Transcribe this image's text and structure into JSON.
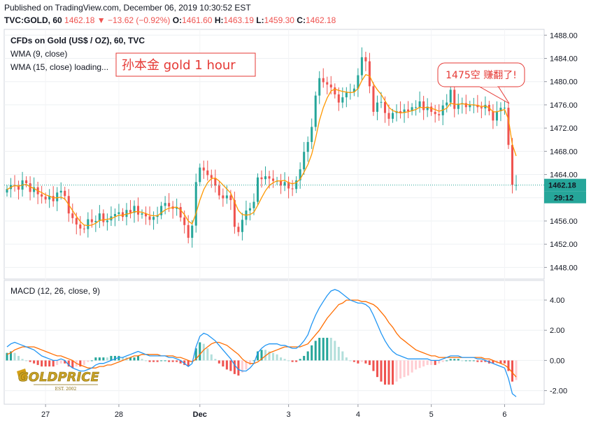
{
  "header": {
    "published": "Published on TradingView.com, December 06, 2019 10:30:52 EST",
    "symbol": "TVC:GOLD, 60",
    "last": "1462.18",
    "arrow": "▼",
    "change": "−13.62 (−0.92%)",
    "o_label": "O:",
    "o_val": "1461.60",
    "h_label": "H:",
    "h_val": "1463.19",
    "l_label": "L:",
    "l_val": "1459.30",
    "c_label": "C:",
    "c_val": "1462.18"
  },
  "legend": {
    "title": "CFDs on Gold (US$ / OZ), 60, TVC",
    "wma9": "WMA (9, close)",
    "wma15": "WMA (15, close) loading...",
    "macd": "MACD (12, 26, close, 9)"
  },
  "annotations": {
    "box_text": "孙本金   gold 1 hour",
    "callout_text": "1475空 赚翻了!",
    "logo_text": "GOLDPRICE",
    "logo_sub": "EST. 2002"
  },
  "price_axis": {
    "labels": [
      "1488.00",
      "1484.00",
      "1480.00",
      "1476.00",
      "1472.00",
      "1468.00",
      "1464.00",
      "1460.00",
      "1456.00",
      "1452.00",
      "1448.00"
    ],
    "current_price": "1462.18",
    "countdown": "29:12"
  },
  "macd_axis": {
    "labels": [
      "4.00",
      "2.00",
      "0.00",
      "-2.00"
    ]
  },
  "time_axis": {
    "labels": [
      "27",
      "28",
      "Dec",
      "3",
      "4",
      "5",
      "6"
    ]
  },
  "colors": {
    "up": "#26a69a",
    "down": "#ef5350",
    "wma": "#ff9800",
    "macd_line": "#2196f3",
    "signal_line": "#ff6d00",
    "hist_up_strong": "#26a69a",
    "hist_up_weak": "#b2dfdb",
    "hist_down_strong": "#ef5350",
    "hist_down_weak": "#ffcdd2",
    "price_tag": "#26a69a",
    "annotation": "#e53935"
  },
  "chart_data": {
    "type": "candlestick",
    "title": "CFDs on Gold (US$ / OZ), 60, TVC",
    "ylim": [
      1446,
      1489
    ],
    "x_labels": [
      "27",
      "28",
      "Dec",
      "3",
      "4",
      "5",
      "6"
    ],
    "closes": [
      1461.5,
      1462.2,
      1462.0,
      1461.4,
      1463.0,
      1462.5,
      1461.0,
      1461.8,
      1460.6,
      1460.2,
      1459.7,
      1460.3,
      1459.4,
      1460.9,
      1461.2,
      1460.3,
      1457.3,
      1456.5,
      1455.4,
      1454.7,
      1454.6,
      1456.3,
      1455.8,
      1456.0,
      1457.3,
      1455.8,
      1456.1,
      1456.8,
      1457.2,
      1457.5,
      1456.7,
      1457.9,
      1457.4,
      1458.6,
      1457.1,
      1457.3,
      1456.8,
      1456.2,
      1456.7,
      1457.0,
      1458.6,
      1459.1,
      1458.5,
      1458.1,
      1458.4,
      1456.6,
      1455.3,
      1453.1,
      1455.2,
      1462.7,
      1465.2,
      1464.7,
      1463.9,
      1463.4,
      1462.1,
      1460.4,
      1459.9,
      1460.4,
      1459.6,
      1455.0,
      1454.1,
      1456.2,
      1457.8,
      1458.2,
      1459.3,
      1463.5,
      1463.2,
      1463.7,
      1463.3,
      1462.9,
      1462.9,
      1462.1,
      1462.7,
      1461.6,
      1461.5,
      1463.0,
      1464.9,
      1467.9,
      1469.6,
      1472.2,
      1477.6,
      1480.6,
      1479.9,
      1479.5,
      1479.0,
      1477.8,
      1476.4,
      1477.3,
      1478.1,
      1478.2,
      1478.8,
      1481.1,
      1484.2,
      1483.5,
      1479.2,
      1474.8,
      1476.4,
      1476.5,
      1474.6,
      1473.6,
      1474.6,
      1474.9,
      1474.6,
      1475.2,
      1474.9,
      1475.6,
      1475.6,
      1476.6,
      1475.1,
      1475.7,
      1474.8,
      1474.4,
      1474.2,
      1475.9,
      1476.4,
      1478.6,
      1475.3,
      1476.2,
      1476.3,
      1475.6,
      1476.0,
      1476.0,
      1475.6,
      1475.4,
      1476.0,
      1474.9,
      1473.3,
      1474.9,
      1475.5,
      1475.5,
      1469.1,
      1462.2,
      1462.2
    ],
    "wma": [
      1461.4,
      1461.8,
      1462.1,
      1462.0,
      1462.2,
      1462.3,
      1461.9,
      1461.6,
      1461.2,
      1460.9,
      1460.5,
      1460.3,
      1460.0,
      1460.0,
      1460.1,
      1459.8,
      1458.8,
      1457.8,
      1456.8,
      1455.9,
      1455.3,
      1455.2,
      1455.3,
      1455.6,
      1456.1,
      1456.2,
      1456.3,
      1456.4,
      1456.7,
      1457.0,
      1457.0,
      1457.2,
      1457.3,
      1457.6,
      1457.6,
      1457.5,
      1457.3,
      1457.0,
      1456.9,
      1456.9,
      1457.4,
      1457.9,
      1458.2,
      1458.3,
      1458.4,
      1457.9,
      1457.1,
      1456.0,
      1455.5,
      1457.3,
      1459.6,
      1461.4,
      1462.6,
      1463.3,
      1463.4,
      1462.9,
      1462.2,
      1461.5,
      1460.8,
      1459.3,
      1457.8,
      1457.1,
      1457.0,
      1457.1,
      1457.5,
      1458.7,
      1460.0,
      1461.2,
      1462.1,
      1462.6,
      1462.9,
      1462.9,
      1463.0,
      1462.6,
      1462.4,
      1462.6,
      1463.2,
      1464.4,
      1465.7,
      1467.5,
      1470.2,
      1473.3,
      1475.5,
      1477.2,
      1478.4,
      1478.7,
      1478.5,
      1478.3,
      1478.2,
      1478.1,
      1478.2,
      1478.8,
      1480.2,
      1481.2,
      1481.0,
      1479.6,
      1478.6,
      1477.8,
      1476.7,
      1475.6,
      1475.0,
      1474.8,
      1474.6,
      1474.7,
      1474.8,
      1475.0,
      1475.2,
      1475.6,
      1475.5,
      1475.6,
      1475.4,
      1475.2,
      1474.9,
      1475.1,
      1475.4,
      1476.3,
      1476.1,
      1476.1,
      1476.2,
      1476.1,
      1476.0,
      1476.0,
      1475.9,
      1475.7,
      1475.8,
      1475.5,
      1474.8,
      1474.8,
      1475.0,
      1475.2,
      1473.5,
      1469.2,
      1467.2
    ],
    "macd": [
      0.9,
      1.1,
      1.2,
      1.1,
      1.0,
      0.9,
      0.8,
      0.7,
      0.5,
      0.3,
      0.2,
      0.1,
      0.0,
      0.0,
      0.1,
      0.0,
      -0.3,
      -0.5,
      -0.6,
      -0.7,
      -0.7,
      -0.6,
      -0.5,
      -0.3,
      -0.2,
      -0.2,
      -0.1,
      0.0,
      0.1,
      0.2,
      0.2,
      0.3,
      0.4,
      0.5,
      0.6,
      0.5,
      0.4,
      0.3,
      0.3,
      0.3,
      0.3,
      0.3,
      0.2,
      0.2,
      0.1,
      0.0,
      -0.2,
      -0.4,
      -0.2,
      0.9,
      1.6,
      1.8,
      1.7,
      1.5,
      1.3,
      1.0,
      0.7,
      0.4,
      0.1,
      -0.3,
      -0.6,
      -0.7,
      -0.7,
      -0.5,
      -0.2,
      0.5,
      0.8,
      1.0,
      1.1,
      1.1,
      1.1,
      1.0,
      1.0,
      0.9,
      0.8,
      0.8,
      1.0,
      1.3,
      1.7,
      2.4,
      3.0,
      3.5,
      3.9,
      4.3,
      4.6,
      4.7,
      4.6,
      4.4,
      4.2,
      4.0,
      3.9,
      3.8,
      3.8,
      3.7,
      3.5,
      3.0,
      2.4,
      1.8,
      1.3,
      0.9,
      0.6,
      0.4,
      0.3,
      0.2,
      0.1,
      0.1,
      0.1,
      0.1,
      0.1,
      0.1,
      0.0,
      0.0,
      0.0,
      0.1,
      0.2,
      0.3,
      0.3,
      0.3,
      0.2,
      0.2,
      0.2,
      0.2,
      0.1,
      0.1,
      0.0,
      -0.1,
      -0.2,
      -0.3,
      -0.4,
      -0.5,
      -1.2,
      -2.2,
      -2.4
    ],
    "signal": [
      0.4,
      0.5,
      0.7,
      0.8,
      0.9,
      0.9,
      0.9,
      0.9,
      0.8,
      0.7,
      0.6,
      0.5,
      0.4,
      0.3,
      0.3,
      0.2,
      0.1,
      0.0,
      -0.2,
      -0.3,
      -0.4,
      -0.5,
      -0.5,
      -0.5,
      -0.4,
      -0.4,
      -0.3,
      -0.3,
      -0.2,
      -0.1,
      0.0,
      0.1,
      0.2,
      0.3,
      0.3,
      0.4,
      0.4,
      0.4,
      0.4,
      0.4,
      0.3,
      0.3,
      0.3,
      0.3,
      0.2,
      0.2,
      0.1,
      0.0,
      -0.1,
      0.1,
      0.4,
      0.7,
      0.9,
      1.1,
      1.2,
      1.2,
      1.1,
      1.0,
      0.8,
      0.6,
      0.4,
      0.1,
      -0.1,
      -0.2,
      -0.2,
      -0.1,
      0.1,
      0.3,
      0.5,
      0.6,
      0.7,
      0.8,
      0.9,
      0.9,
      0.9,
      0.9,
      0.9,
      1.0,
      1.1,
      1.4,
      1.7,
      2.0,
      2.4,
      2.8,
      3.1,
      3.4,
      3.7,
      3.8,
      4.0,
      4.0,
      4.0,
      4.0,
      3.9,
      3.9,
      3.8,
      3.7,
      3.5,
      3.2,
      2.9,
      2.5,
      2.2,
      1.8,
      1.5,
      1.3,
      1.1,
      0.9,
      0.7,
      0.6,
      0.5,
      0.4,
      0.3,
      0.3,
      0.2,
      0.2,
      0.2,
      0.2,
      0.2,
      0.2,
      0.2,
      0.2,
      0.2,
      0.2,
      0.2,
      0.2,
      0.1,
      0.1,
      0.0,
      -0.1,
      -0.2,
      -0.3,
      -0.5,
      -0.8,
      -1.1
    ],
    "macd_ylim": [
      -2.9,
      5.3
    ]
  }
}
